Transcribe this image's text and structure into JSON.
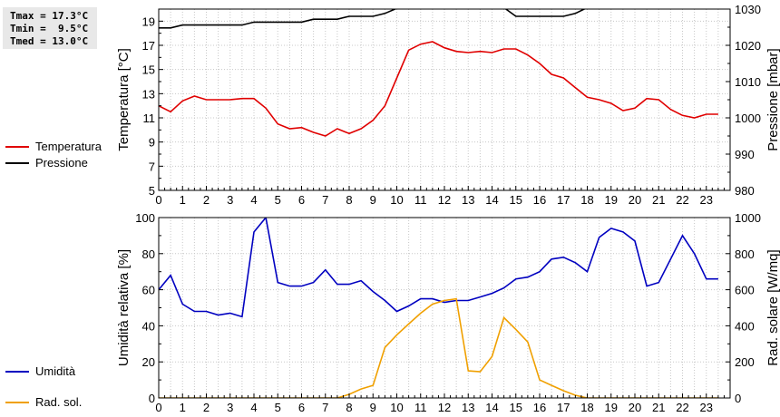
{
  "stats": {
    "tmax": "Tmax = 17.3°C",
    "tmin": "Tmin =  9.5°C",
    "tmed": "Tmed = 13.0°C"
  },
  "legend_top": [
    {
      "label": "Temperatura",
      "color": "#e00000"
    },
    {
      "label": "Pressione",
      "color": "#000000"
    }
  ],
  "legend_bottom": [
    {
      "label": "Umidità",
      "color": "#0000c0"
    },
    {
      "label": "Rad. sol.",
      "color": "#f0a000"
    }
  ],
  "chart_data": [
    {
      "type": "line",
      "xlim": [
        0,
        24
      ],
      "xticks": [
        0,
        1,
        2,
        3,
        4,
        5,
        6,
        7,
        8,
        9,
        10,
        11,
        12,
        13,
        14,
        15,
        16,
        17,
        18,
        19,
        20,
        21,
        22,
        23
      ],
      "ylabel": "Temperatura [°C]",
      "ylim": [
        5,
        20
      ],
      "yticks": [
        5,
        7,
        9,
        11,
        13,
        15,
        17,
        19
      ],
      "y2label": "Pressione [mbar]",
      "y2lim": [
        980,
        1030
      ],
      "y2ticks": [
        980,
        990,
        1000,
        1010,
        1020,
        1030
      ],
      "grid": true,
      "series": [
        {
          "name": "Temperatura",
          "axis": "left",
          "color": "#e00000",
          "x": [
            0,
            0.5,
            1,
            1.5,
            2,
            2.5,
            3,
            3.5,
            4,
            4.5,
            5,
            5.5,
            6,
            6.5,
            7,
            7.5,
            8,
            8.5,
            9,
            9.5,
            10,
            10.5,
            11,
            11.5,
            12,
            12.5,
            13,
            13.5,
            14,
            14.5,
            15,
            15.5,
            16,
            16.5,
            17,
            17.5,
            18,
            18.5,
            19,
            19.5,
            20,
            20.5,
            21,
            21.5,
            22,
            22.5,
            23,
            23.5
          ],
          "y": [
            12.0,
            11.5,
            12.4,
            12.8,
            12.5,
            12.5,
            12.5,
            12.6,
            12.6,
            11.8,
            10.5,
            10.1,
            10.2,
            9.8,
            9.5,
            10.1,
            9.7,
            10.1,
            10.8,
            12.0,
            14.3,
            16.6,
            17.1,
            17.3,
            16.8,
            16.5,
            16.4,
            16.5,
            16.4,
            16.7,
            16.7,
            16.2,
            15.5,
            14.6,
            14.3,
            13.5,
            12.7,
            12.5,
            12.2,
            11.6,
            11.8,
            12.6,
            12.5,
            11.7,
            11.2,
            11.0,
            11.3,
            11.3
          ]
        },
        {
          "name": "Pressione",
          "axis": "right",
          "color": "#000000",
          "x": [
            0,
            0.5,
            1,
            1.5,
            2,
            2.5,
            3,
            3.5,
            4,
            4.5,
            5,
            5.5,
            6,
            6.5,
            7,
            7.5,
            8,
            8.5,
            9,
            9.5,
            10,
            10.5,
            11,
            11.5,
            12,
            12.5,
            13,
            13.5,
            14,
            14.5,
            15,
            15.5,
            16,
            16.5,
            17,
            17.5,
            18,
            18.5,
            19,
            19.5,
            20,
            20.5,
            21,
            21.5,
            22,
            22.5,
            23,
            23.5
          ],
          "y": [
            1024.8,
            1024.8,
            1025.6,
            1025.6,
            1025.6,
            1025.6,
            1025.6,
            1025.6,
            1026.4,
            1026.4,
            1026.4,
            1026.4,
            1026.4,
            1027.2,
            1027.2,
            1027.2,
            1028.0,
            1028.0,
            1028.0,
            1028.8,
            1030.2,
            1030.5,
            1030.8,
            1031.0,
            1031.0,
            1031.0,
            1031.0,
            1031.0,
            1030.8,
            1030.4,
            1028.0,
            1028.0,
            1028.0,
            1028.0,
            1028.0,
            1028.8,
            1030.4,
            1030.8,
            1031.0,
            1031.2,
            1031.4,
            1031.5,
            1031.6,
            1031.6,
            1031.6,
            1031.6,
            1031.6,
            1031.6
          ]
        }
      ]
    },
    {
      "type": "line",
      "xlim": [
        0,
        24
      ],
      "xticks": [
        0,
        1,
        2,
        3,
        4,
        5,
        6,
        7,
        8,
        9,
        10,
        11,
        12,
        13,
        14,
        15,
        16,
        17,
        18,
        19,
        20,
        21,
        22,
        23
      ],
      "ylabel": "Umidità relativa [%]",
      "ylim": [
        0,
        100
      ],
      "yticks": [
        0,
        20,
        40,
        60,
        80,
        100
      ],
      "y2label": "Rad. solare [W/mq]",
      "y2lim": [
        0,
        1000
      ],
      "y2ticks": [
        0,
        200,
        400,
        600,
        800,
        1000
      ],
      "grid": true,
      "series": [
        {
          "name": "Umidità",
          "axis": "left",
          "color": "#0000c0",
          "x": [
            0,
            0.5,
            1,
            1.5,
            2,
            2.5,
            3,
            3.5,
            4,
            4.5,
            5,
            5.5,
            6,
            6.5,
            7,
            7.5,
            8,
            8.5,
            9,
            9.5,
            10,
            10.5,
            11,
            11.5,
            12,
            12.5,
            13,
            13.5,
            14,
            14.5,
            15,
            15.5,
            16,
            16.5,
            17,
            17.5,
            18,
            18.5,
            19,
            19.5,
            20,
            20.5,
            21,
            21.5,
            22,
            22.5,
            23,
            23.5
          ],
          "y": [
            60,
            68,
            52,
            48,
            48,
            46,
            47,
            45,
            92,
            100,
            64,
            62,
            62,
            64,
            71,
            63,
            63,
            65,
            59,
            54,
            48,
            51,
            55,
            55,
            53,
            54,
            54,
            56,
            58,
            61,
            66,
            67,
            70,
            77,
            78,
            75,
            70,
            89,
            94,
            92,
            87,
            62,
            64,
            77,
            90,
            80,
            66,
            66
          ]
        },
        {
          "name": "Rad. sol.",
          "axis": "right",
          "color": "#f0a000",
          "x": [
            0,
            0.5,
            1,
            1.5,
            2,
            2.5,
            3,
            3.5,
            4,
            4.5,
            5,
            5.5,
            6,
            6.5,
            7,
            7.5,
            8,
            8.5,
            9,
            9.5,
            10,
            10.5,
            11,
            11.5,
            12,
            12.5,
            13,
            13.5,
            14,
            14.5,
            15,
            15.5,
            16,
            16.5,
            17,
            17.5,
            18,
            18.5,
            19,
            19.5,
            20,
            20.5,
            21,
            21.5,
            22,
            22.5,
            23,
            23.5
          ],
          "y": [
            0,
            0,
            0,
            0,
            0,
            0,
            0,
            0,
            0,
            0,
            0,
            0,
            0,
            0,
            0,
            0,
            20,
            50,
            70,
            280,
            350,
            410,
            470,
            520,
            540,
            550,
            150,
            145,
            230,
            445,
            380,
            310,
            100,
            70,
            40,
            15,
            0,
            0,
            0,
            0,
            0,
            0,
            0,
            0,
            0,
            0,
            0,
            0
          ]
        }
      ]
    }
  ]
}
